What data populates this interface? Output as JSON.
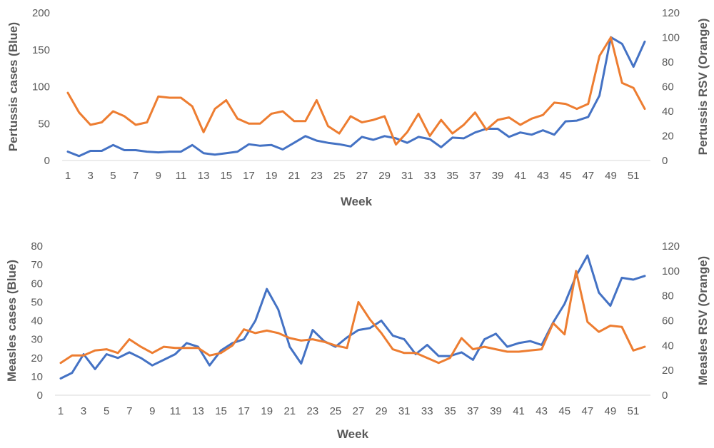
{
  "colors": {
    "blue": "#4472C4",
    "orange": "#ED7D31",
    "axis": "#D9D9D9",
    "text": "#595959"
  },
  "chart_data": [
    {
      "type": "line",
      "xlabel": "Week",
      "ylabel_left": "Pertussis cases (Blue)",
      "ylabel_right": "Pertussis RSV (Orange)",
      "ylim_left": [
        0,
        200
      ],
      "yticks_left": [
        0,
        50,
        100,
        150,
        200
      ],
      "ylim_right": [
        0,
        120
      ],
      "yticks_right": [
        0,
        20,
        40,
        60,
        80,
        100,
        120
      ],
      "x": [
        1,
        2,
        3,
        4,
        5,
        6,
        7,
        8,
        9,
        10,
        11,
        12,
        13,
        14,
        15,
        16,
        17,
        18,
        19,
        20,
        21,
        22,
        23,
        24,
        25,
        26,
        27,
        28,
        29,
        30,
        31,
        32,
        33,
        34,
        35,
        36,
        37,
        38,
        39,
        40,
        41,
        42,
        43,
        44,
        45,
        46,
        47,
        48,
        49,
        50,
        51,
        52
      ],
      "xtick_labels": [
        "1",
        "3",
        "5",
        "7",
        "9",
        "11",
        "13",
        "15",
        "17",
        "19",
        "21",
        "23",
        "25",
        "27",
        "29",
        "31",
        "33",
        "35",
        "37",
        "39",
        "41",
        "43",
        "45",
        "47",
        "49",
        "51"
      ],
      "grid": false,
      "series": [
        {
          "axis": "left",
          "color": "#4472C4",
          "values": [
            12,
            6,
            13,
            13,
            21,
            14,
            14,
            12,
            11,
            12,
            12,
            21,
            10,
            8,
            10,
            12,
            22,
            20,
            21,
            15,
            24,
            33,
            27,
            24,
            22,
            19,
            32,
            28,
            33,
            30,
            24,
            32,
            29,
            18,
            31,
            30,
            38,
            43,
            43,
            32,
            38,
            35,
            41,
            35,
            53,
            54,
            59,
            88,
            167,
            158,
            127,
            161
          ]
        },
        {
          "axis": "right",
          "color": "#ED7D31",
          "values": [
            55,
            39,
            29,
            31,
            40,
            36,
            29,
            31,
            52,
            51,
            51,
            44,
            23,
            42,
            49,
            34,
            30,
            30,
            38,
            40,
            32,
            32,
            49,
            28,
            22,
            36,
            31,
            33,
            36,
            13,
            23,
            38,
            20,
            33,
            22,
            29,
            39,
            25,
            33,
            35,
            29,
            34,
            37,
            47,
            46,
            42,
            46,
            85,
            100,
            63,
            59,
            42
          ]
        }
      ]
    },
    {
      "type": "line",
      "xlabel": "Week",
      "ylabel_left": "Measles cases (Blue)",
      "ylabel_right": "Measles  RSV (Orange)",
      "ylim_left": [
        0,
        80
      ],
      "yticks_left": [
        0,
        10,
        20,
        30,
        40,
        50,
        60,
        70,
        80
      ],
      "ylim_right": [
        0,
        120
      ],
      "yticks_right": [
        0,
        20,
        40,
        60,
        80,
        100,
        120
      ],
      "x": [
        1,
        2,
        3,
        4,
        5,
        6,
        7,
        8,
        9,
        10,
        11,
        12,
        13,
        14,
        15,
        16,
        17,
        18,
        19,
        20,
        21,
        22,
        23,
        24,
        25,
        26,
        27,
        28,
        29,
        30,
        31,
        32,
        33,
        34,
        35,
        36,
        37,
        38,
        39,
        40,
        41,
        42,
        43,
        44,
        45,
        46,
        47,
        48,
        49,
        50,
        51,
        52
      ],
      "xtick_labels": [
        "1",
        "3",
        "5",
        "7",
        "9",
        "11",
        "13",
        "15",
        "17",
        "19",
        "21",
        "23",
        "25",
        "27",
        "29",
        "31",
        "33",
        "35",
        "37",
        "39",
        "41",
        "43",
        "45",
        "47",
        "49",
        "51"
      ],
      "grid": false,
      "series": [
        {
          "axis": "left",
          "color": "#4472C4",
          "values": [
            9,
            12,
            22,
            14,
            22,
            20,
            23,
            20,
            16,
            19,
            22,
            28,
            26,
            16,
            24,
            28,
            30,
            40,
            57,
            46,
            26,
            17,
            35,
            29,
            26,
            31,
            35,
            36,
            40,
            32,
            30,
            22,
            27,
            21,
            21,
            23,
            19,
            30,
            33,
            26,
            28,
            29,
            27,
            39,
            49,
            64,
            75,
            55,
            48,
            63,
            62,
            64
          ]
        },
        {
          "axis": "right",
          "color": "#ED7D31",
          "values": [
            26,
            32,
            32,
            36,
            37,
            34,
            45,
            39,
            34,
            39,
            38,
            38,
            38,
            32,
            34,
            40,
            53,
            50,
            52,
            50,
            46,
            44,
            45,
            43,
            40,
            38,
            75,
            61,
            50,
            37,
            34,
            34,
            30,
            26,
            30,
            46,
            37,
            39,
            37,
            35,
            35,
            36,
            37,
            58,
            49,
            100,
            59,
            51,
            56,
            55,
            36,
            39
          ]
        }
      ]
    }
  ]
}
